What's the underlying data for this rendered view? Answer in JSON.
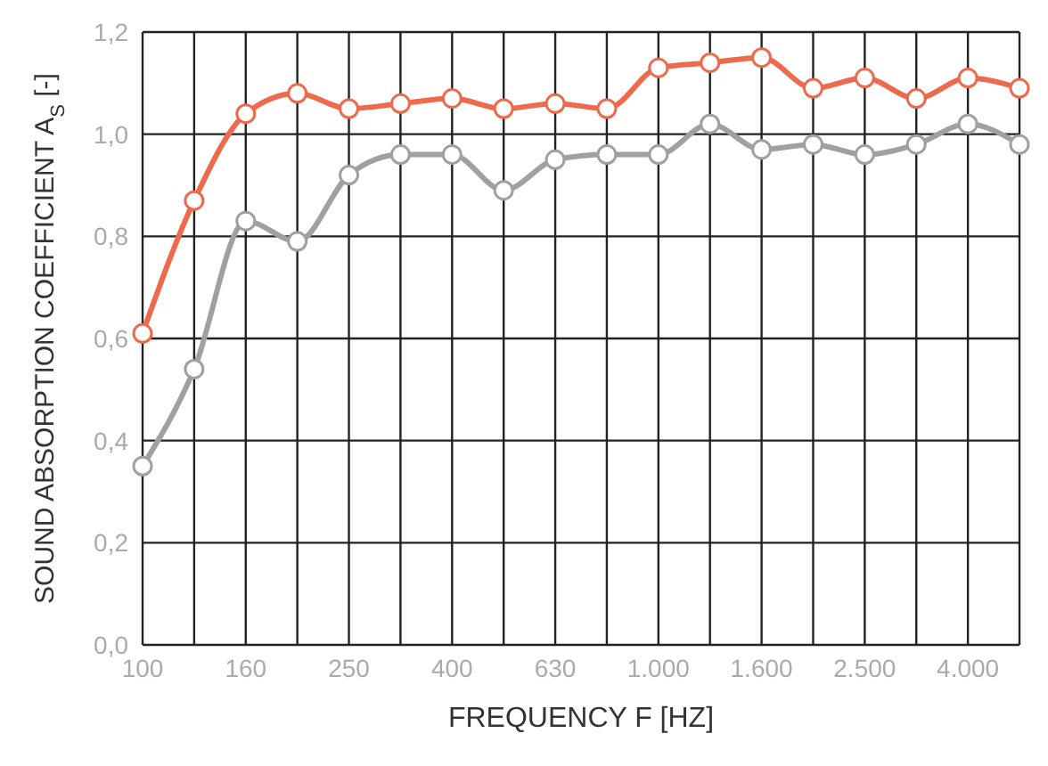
{
  "chart_data": {
    "type": "line",
    "xlabel": "FREQUENCY F [HZ]",
    "ylabel": "SOUND ABSORPTION COEFFICIENT A$_{S}$ [-]",
    "categories": [
      "100",
      null,
      "160",
      null,
      "250",
      null,
      "400",
      null,
      "630",
      null,
      "1.000",
      null,
      "1.600",
      null,
      "2.500",
      null,
      "4.000",
      null
    ],
    "series": [
      {
        "color": "#ee6a4c",
        "values": [
          0.61,
          0.87,
          1.04,
          1.08,
          1.05,
          1.06,
          1.07,
          1.05,
          1.06,
          1.05,
          1.13,
          1.14,
          1.15,
          1.09,
          1.11,
          1.07,
          1.11,
          1.09
        ]
      },
      {
        "color": "#a0a0a4",
        "values": [
          0.35,
          0.54,
          0.83,
          0.79,
          0.92,
          0.96,
          0.96,
          0.89,
          0.95,
          0.96,
          0.96,
          1.02,
          0.97,
          0.98,
          0.96,
          0.98,
          1.02,
          0.98
        ]
      }
    ],
    "ylim": [
      0,
      1.2
    ],
    "yticks": [
      {
        "value": 0,
        "label": "0,0"
      },
      {
        "value": 0.2,
        "label": "0,2"
      },
      {
        "value": 0.4,
        "label": "0,4"
      },
      {
        "value": 0.6,
        "label": "0,6"
      },
      {
        "value": 0.8,
        "label": "0,8"
      },
      {
        "value": 1,
        "label": "1,0"
      },
      {
        "value": 1.2,
        "label": "1,2"
      }
    ],
    "grid": true,
    "marker": "circle",
    "line_style": "solid",
    "legend": false
  }
}
